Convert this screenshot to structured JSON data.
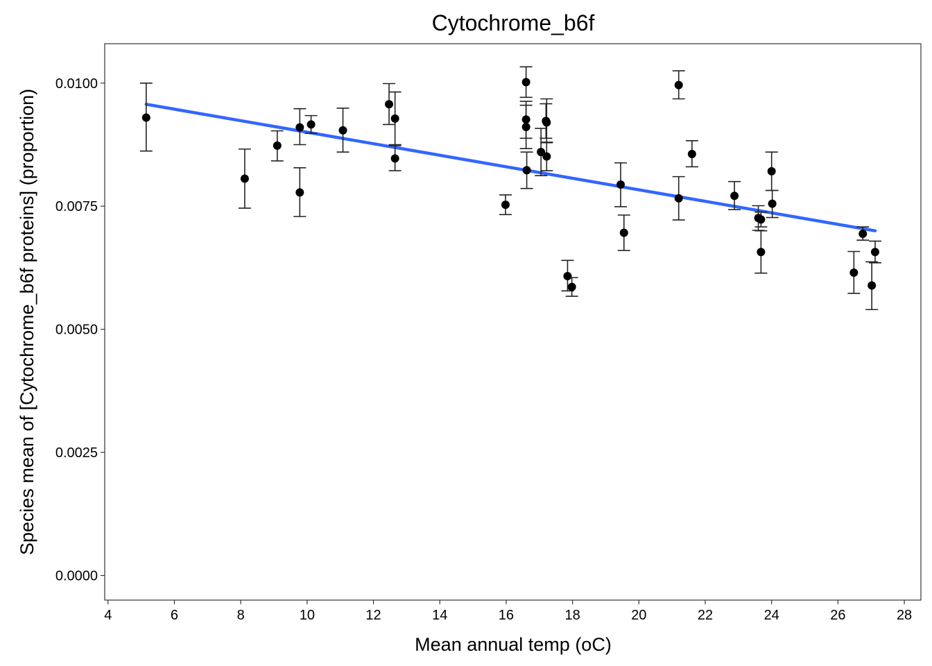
{
  "chart_data": {
    "type": "scatter",
    "title": "Cytochrome_b6f",
    "xlabel": "Mean annual temp (oC)",
    "ylabel": "Species mean of [Cytochrome_b6f proteins] (proportion)",
    "xlim": [
      3.9,
      28.5
    ],
    "ylim": [
      -0.0005,
      0.0108
    ],
    "x_ticks": [
      4,
      6,
      8,
      10,
      12,
      14,
      16,
      18,
      20,
      22,
      24,
      26,
      28
    ],
    "x_tick_labels": [
      "4",
      "6",
      "8",
      "10",
      "12",
      "14",
      "16",
      "18",
      "20",
      "22",
      "24",
      "26",
      "28"
    ],
    "y_ticks": [
      0.0,
      0.0025,
      0.005,
      0.0075,
      0.01
    ],
    "y_tick_labels": [
      "0.0000",
      "0.0025",
      "0.0050",
      "0.0075",
      "0.0100"
    ],
    "grid": false,
    "points": [
      {
        "x": 5.15,
        "y": 0.0093,
        "lo": 0.00862,
        "hi": 0.01
      },
      {
        "x": 8.12,
        "y": 0.00806,
        "lo": 0.00746,
        "hi": 0.00866
      },
      {
        "x": 9.1,
        "y": 0.00873,
        "lo": 0.00842,
        "hi": 0.00903
      },
      {
        "x": 9.78,
        "y": 0.0091,
        "lo": 0.00875,
        "hi": 0.00948
      },
      {
        "x": 9.78,
        "y": 0.00778,
        "lo": 0.00729,
        "hi": 0.00828
      },
      {
        "x": 10.12,
        "y": 0.00916,
        "lo": 0.00898,
        "hi": 0.00934
      },
      {
        "x": 11.08,
        "y": 0.00904,
        "lo": 0.0086,
        "hi": 0.00949
      },
      {
        "x": 12.47,
        "y": 0.00957,
        "lo": 0.00916,
        "hi": 0.00999
      },
      {
        "x": 12.65,
        "y": 0.00928,
        "lo": 0.00875,
        "hi": 0.00982
      },
      {
        "x": 12.65,
        "y": 0.00847,
        "lo": 0.00822,
        "hi": 0.00873
      },
      {
        "x": 15.98,
        "y": 0.00753,
        "lo": 0.00733,
        "hi": 0.00773
      },
      {
        "x": 16.6,
        "y": 0.01002,
        "lo": 0.00971,
        "hi": 0.01033
      },
      {
        "x": 16.6,
        "y": 0.00926,
        "lo": 0.00888,
        "hi": 0.00963
      },
      {
        "x": 16.6,
        "y": 0.00911,
        "lo": 0.00867,
        "hi": 0.00955
      },
      {
        "x": 16.62,
        "y": 0.00823,
        "lo": 0.00786,
        "hi": 0.0086
      },
      {
        "x": 17.05,
        "y": 0.0086,
        "lo": 0.00812,
        "hi": 0.00908
      },
      {
        "x": 17.2,
        "y": 0.00923,
        "lo": 0.00888,
        "hi": 0.00958
      },
      {
        "x": 17.22,
        "y": 0.0092,
        "lo": 0.00879,
        "hi": 0.00968
      },
      {
        "x": 17.22,
        "y": 0.00851,
        "lo": 0.00822,
        "hi": 0.0088
      },
      {
        "x": 17.85,
        "y": 0.00608,
        "lo": 0.00578,
        "hi": 0.0064
      },
      {
        "x": 17.98,
        "y": 0.00586,
        "lo": 0.00567,
        "hi": 0.00605
      },
      {
        "x": 19.45,
        "y": 0.00794,
        "lo": 0.00749,
        "hi": 0.00838
      },
      {
        "x": 19.55,
        "y": 0.00696,
        "lo": 0.0066,
        "hi": 0.00732
      },
      {
        "x": 21.2,
        "y": 0.00996,
        "lo": 0.00968,
        "hi": 0.01025
      },
      {
        "x": 21.2,
        "y": 0.00766,
        "lo": 0.00722,
        "hi": 0.0081
      },
      {
        "x": 21.6,
        "y": 0.00856,
        "lo": 0.0083,
        "hi": 0.00883
      },
      {
        "x": 22.88,
        "y": 0.00771,
        "lo": 0.00743,
        "hi": 0.008
      },
      {
        "x": 23.6,
        "y": 0.00726,
        "lo": 0.00701,
        "hi": 0.00751
      },
      {
        "x": 23.68,
        "y": 0.00723,
        "lo": 0.00708,
        "hi": 0.00738
      },
      {
        "x": 23.68,
        "y": 0.00657,
        "lo": 0.00614,
        "hi": 0.007
      },
      {
        "x": 24.0,
        "y": 0.00821,
        "lo": 0.00782,
        "hi": 0.0086
      },
      {
        "x": 24.02,
        "y": 0.00755,
        "lo": 0.00727,
        "hi": 0.00782
      },
      {
        "x": 26.48,
        "y": 0.00615,
        "lo": 0.00573,
        "hi": 0.00658
      },
      {
        "x": 26.75,
        "y": 0.00694,
        "lo": 0.00681,
        "hi": 0.00708
      },
      {
        "x": 27.02,
        "y": 0.00589,
        "lo": 0.0054,
        "hi": 0.00637
      },
      {
        "x": 27.12,
        "y": 0.00657,
        "lo": 0.00635,
        "hi": 0.00679
      }
    ],
    "trend_line": {
      "x": [
        5.15,
        27.12
      ],
      "y": [
        0.00957,
        0.007
      ],
      "color": "#3366ff"
    },
    "point_color": "#000000",
    "errorbar_color": "#222222"
  }
}
